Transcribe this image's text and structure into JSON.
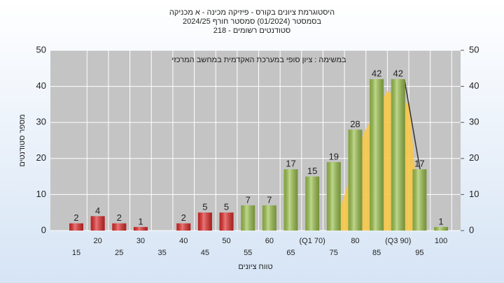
{
  "chart_data": {
    "type": "bar",
    "title": [
      "היסטוגרמת ציונים בקורס - פיזיקה מכינה - א מכניקה",
      "בסמסטר  (01/2024)  סמסטר חורף 2024/25",
      "סטודנטים רשומים - 218"
    ],
    "annotation": "במשימה : ציון סופי במערכת האקדמית במחשב המרכזי",
    "x_label": "טווח ציונים",
    "y_label": "מספר סטודנטים",
    "categories": [
      "15",
      "20",
      "25",
      "30",
      "35",
      "40",
      "45",
      "50",
      "55",
      "60",
      "65",
      "(Q1 70)",
      "75",
      "80",
      "85",
      "(Q3 90)",
      "95",
      "100"
    ],
    "values": [
      2,
      4,
      2,
      1,
      null,
      2,
      5,
      5,
      7,
      7,
      17,
      15,
      19,
      28,
      42,
      42,
      17,
      1
    ],
    "bar_colors": [
      "#e02a2a",
      "#e02a2a",
      "#e02a2a",
      "#e02a2a",
      "#e02a2a",
      "#e02a2a",
      "#e02a2a",
      "#e02a2a",
      "#9cc24c",
      "#9cc24c",
      "#9cc24c",
      "#9cc24c",
      "#9cc24c",
      "#9cc24c",
      "#9cc24c",
      "#9cc24c",
      "#9cc24c",
      "#9cc24c"
    ],
    "ylim": [
      0,
      50
    ],
    "yticks": [
      0,
      10,
      20,
      30,
      40,
      50
    ],
    "y2lim": [
      0,
      50
    ],
    "y2ticks": [
      0,
      10,
      20,
      30,
      40,
      50
    ],
    "grid": true
  }
}
